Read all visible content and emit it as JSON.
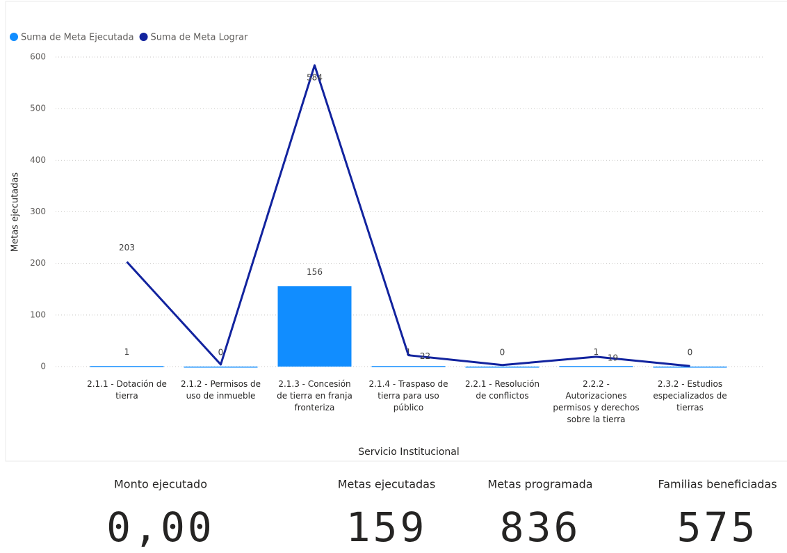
{
  "chart_data": {
    "type": "combo",
    "y_label": "Metas ejecutadas",
    "x_label": "Servicio Institucional",
    "categories": [
      "2.1.1 - Dotación de tierra",
      "2.1.2 - Permisos de uso de inmueble",
      "2.1.3 - Concesión de tierra en franja fronteriza",
      "2.1.4 - Traspaso de tierra para uso público",
      "2.2.1 - Resolución de conflictos",
      "2.2.2 - Autorizaciones permisos y derechos sobre la tierra",
      "2.3.2 - Estudios especializados de tierras"
    ],
    "series": [
      {
        "name": "Suma de Meta Ejecutada",
        "type": "bar",
        "color": "#118dff",
        "values": [
          1,
          0,
          156,
          1,
          0,
          1,
          0
        ]
      },
      {
        "name": "Suma de Meta Lograr",
        "type": "line",
        "color": "#12239e",
        "values": [
          203,
          4,
          584,
          22,
          3,
          19,
          1
        ],
        "value_labels": [
          "203",
          null,
          "584",
          "22",
          null,
          "19",
          null
        ]
      }
    ],
    "ylim": [
      0,
      600
    ],
    "yticks": [
      0,
      100,
      200,
      300,
      400,
      500,
      600
    ],
    "grid": true
  },
  "cards": [
    {
      "label": "Monto ejecutado",
      "value": "0,00"
    },
    {
      "label": "Metas ejecutadas",
      "value": "159"
    },
    {
      "label": "Metas programada",
      "value": "836"
    },
    {
      "label": "Familias beneficiadas",
      "value": "575"
    }
  ]
}
